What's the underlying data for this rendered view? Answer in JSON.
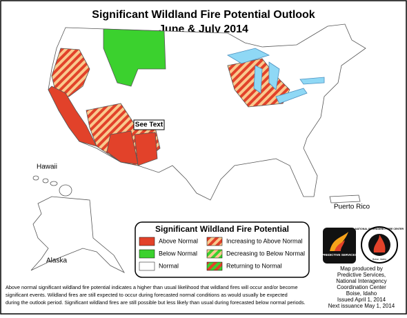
{
  "header": {
    "title": "Significant Wildland Fire Potential Outlook",
    "subtitle": "June & July 2014"
  },
  "map": {
    "callout": "See Text",
    "labels": {
      "hawaii": "Hawaii",
      "alaska": "Alaska",
      "puerto_rico": "Puerto Rico"
    }
  },
  "legend": {
    "title": "Significant Wildland Fire Potential",
    "items": [
      "Above Normal",
      "Below Normal",
      "Normal",
      "Increasing to Above Normal",
      "Decreasing to Below Normal",
      "Returning to Normal"
    ]
  },
  "logos": {
    "predictive": "PREDICTIVE SERVICES",
    "nifc": "NATIONAL INTERAGENCY FIRE CENTER",
    "nifc_city": "Boise, Idaho"
  },
  "credit": [
    "Map produced by",
    "Predictive Services,",
    "National Interagency",
    "Coordination Center",
    "Boise, Idaho",
    "Issued April 1, 2014",
    "Next issuance May 1, 2014"
  ],
  "footnote": [
    "Above normal significant wildland fire potential indicates a higher than usual likelihood that wildland fires will occur and/or become",
    "significant events.  Wildland fires are still expected to occur during forecasted normal conditions as would usually be expected",
    "during the outlook period.  Significant wildland fires are still possible but less likely than usual during forecasted below normal periods."
  ]
}
